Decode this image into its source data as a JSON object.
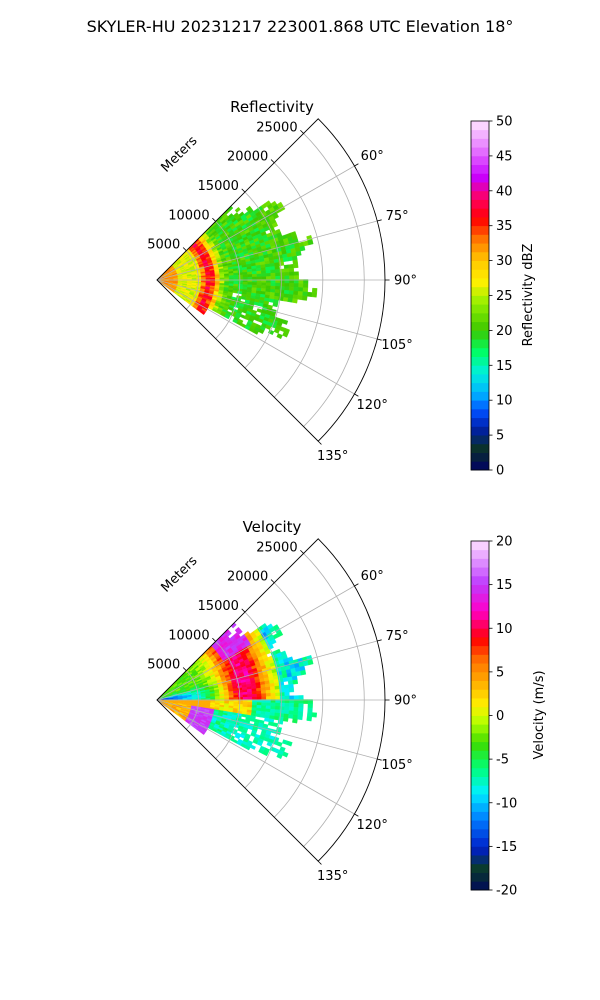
{
  "figure": {
    "title": "SKYLER-HU  20231217  223001.868 UTC Elevation 18°"
  },
  "chart_data": [
    {
      "type": "heatmap",
      "projection": "polar-sector",
      "title": "Reflectivity",
      "range_label": "Meters",
      "range_ticks": [
        "5000",
        "10000",
        "15000",
        "20000",
        "25000"
      ],
      "range_limit": 27500,
      "azimuth_range_deg": [
        45,
        135
      ],
      "azimuth_ticks": [
        "60°",
        "75°",
        "90°",
        "105°",
        "120°",
        "135°"
      ],
      "grid": true,
      "colorbar": {
        "label": "Reflectivity dBZ",
        "min": 0,
        "max": 50,
        "ticks": [
          "0",
          "5",
          "10",
          "15",
          "20",
          "25",
          "30",
          "35",
          "40",
          "45",
          "50"
        ],
        "colormap": "pyart_HomeyerRainbow"
      },
      "data_extent": {
        "min_range_m": 0,
        "max_range_m": 19000,
        "azimuth_deg": [
          45,
          125
        ]
      },
      "features": {
        "near_range_dbz": 32,
        "enhanced_band_range_m": 6000,
        "enhanced_band_dbz": 37,
        "far_range_dbz": 20
      }
    },
    {
      "type": "heatmap",
      "projection": "polar-sector",
      "title": "Velocity",
      "range_label": "Meters",
      "range_ticks": [
        "5000",
        "10000",
        "15000",
        "20000",
        "25000"
      ],
      "range_limit": 27500,
      "azimuth_range_deg": [
        45,
        135
      ],
      "azimuth_ticks": [
        "60°",
        "75°",
        "90°",
        "105°",
        "120°",
        "135°"
      ],
      "grid": true,
      "colorbar": {
        "label": "Velocity (m/s)",
        "min": -20,
        "max": 20,
        "ticks": [
          "-20",
          "-15",
          "-10",
          "-5",
          "0",
          "5",
          "10",
          "15",
          "20"
        ],
        "colormap": "pyart_BuDRd18"
      },
      "data_extent": {
        "min_range_m": 0,
        "max_range_m": 19000,
        "azimuth_deg": [
          45,
          125
        ]
      },
      "features": {
        "inbound_core_ms": -10,
        "outbound_core_ms": 11,
        "south_edge_ms": 16
      }
    }
  ]
}
